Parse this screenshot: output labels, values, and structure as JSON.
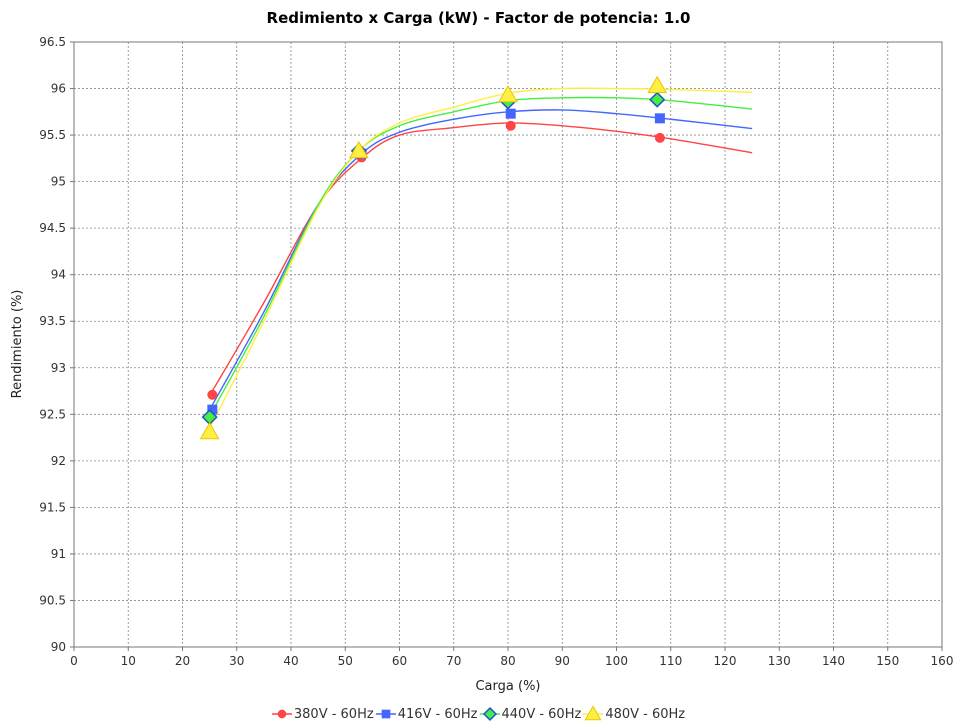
{
  "chart_data": {
    "type": "line",
    "title": "Redimiento x Carga (kW) - Factor de potencia: 1.0",
    "xlabel": "Carga (%)",
    "ylabel": "Rendimiento (%)",
    "xlim": [
      0,
      160
    ],
    "ylim": [
      90,
      96.5
    ],
    "x_ticks": [
      "0",
      "10",
      "20",
      "30",
      "40",
      "50",
      "60",
      "70",
      "80",
      "90",
      "100",
      "110",
      "120",
      "130",
      "140",
      "150",
      "160"
    ],
    "y_ticks": [
      "90",
      "90.5",
      "91",
      "91.5",
      "92",
      "92.5",
      "93",
      "93.5",
      "94",
      "94.5",
      "95",
      "95.5",
      "96",
      "96.5"
    ],
    "grid": true,
    "legend_position": "bottom",
    "series": [
      {
        "name": "380V - 60Hz",
        "color": "#ff4444",
        "marker": "circle",
        "points": [
          [
            25.5,
            92.71
          ],
          [
            53.0,
            95.26
          ],
          [
            80.5,
            95.6
          ],
          [
            108.0,
            95.47
          ]
        ],
        "curve": [
          [
            25.5,
            92.75
          ],
          [
            35,
            93.7
          ],
          [
            45,
            94.75
          ],
          [
            53,
            95.25
          ],
          [
            60,
            95.5
          ],
          [
            70,
            95.58
          ],
          [
            80,
            95.63
          ],
          [
            90,
            95.6
          ],
          [
            100,
            95.54
          ],
          [
            110,
            95.46
          ],
          [
            125,
            95.31
          ]
        ]
      },
      {
        "name": "416V - 60Hz",
        "color": "#4466ff",
        "marker": "square",
        "points": [
          [
            25.5,
            92.55
          ],
          [
            53.0,
            95.3
          ],
          [
            80.5,
            95.73
          ],
          [
            108.0,
            95.68
          ]
        ],
        "curve": [
          [
            25.5,
            92.6
          ],
          [
            35,
            93.6
          ],
          [
            45,
            94.75
          ],
          [
            53,
            95.3
          ],
          [
            60,
            95.53
          ],
          [
            70,
            95.67
          ],
          [
            80,
            95.75
          ],
          [
            90,
            95.77
          ],
          [
            100,
            95.73
          ],
          [
            110,
            95.67
          ],
          [
            125,
            95.57
          ]
        ]
      },
      {
        "name": "440V - 60Hz",
        "color": "#44ee44",
        "marker": "diamond",
        "points": [
          [
            25.0,
            92.47
          ],
          [
            52.5,
            95.33
          ],
          [
            80.0,
            95.86
          ],
          [
            107.5,
            95.88
          ]
        ],
        "curve": [
          [
            25.0,
            92.48
          ],
          [
            35,
            93.55
          ],
          [
            45,
            94.75
          ],
          [
            52.5,
            95.33
          ],
          [
            60,
            95.6
          ],
          [
            70,
            95.75
          ],
          [
            80,
            95.87
          ],
          [
            90,
            95.9
          ],
          [
            100,
            95.9
          ],
          [
            110,
            95.87
          ],
          [
            125,
            95.78
          ]
        ]
      },
      {
        "name": "480V - 60Hz",
        "color": "#ffee44",
        "marker": "triangle",
        "points": [
          [
            25.0,
            92.31
          ],
          [
            52.5,
            95.33
          ],
          [
            80.0,
            95.93
          ],
          [
            107.5,
            96.03
          ]
        ],
        "curve": [
          [
            25.0,
            92.35
          ],
          [
            35,
            93.5
          ],
          [
            45,
            94.72
          ],
          [
            52.5,
            95.33
          ],
          [
            60,
            95.63
          ],
          [
            70,
            95.8
          ],
          [
            80,
            95.95
          ],
          [
            90,
            96.0
          ],
          [
            100,
            96.0
          ],
          [
            110,
            95.99
          ],
          [
            125,
            95.96
          ]
        ]
      }
    ]
  }
}
